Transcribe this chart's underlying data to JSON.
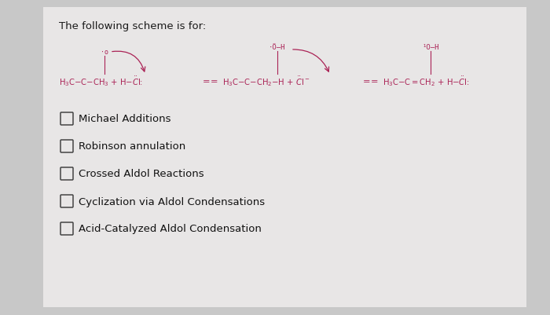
{
  "title": "The following scheme is for:",
  "title_color": "#1a1a1a",
  "title_fontsize": 9.5,
  "bg_color": "#c8c8c8",
  "inner_bg": "#e8e6e6",
  "chem_color": "#aa2255",
  "options": [
    "Michael Additions",
    "Robinson annulation",
    "Crossed Aldol Reactions",
    "Cyclization via Aldol Condensations",
    "Acid-Catalyzed Aldol Condensation"
  ],
  "option_fontsize": 9.5,
  "option_color": "#111111",
  "checkbox_color": "#444444"
}
